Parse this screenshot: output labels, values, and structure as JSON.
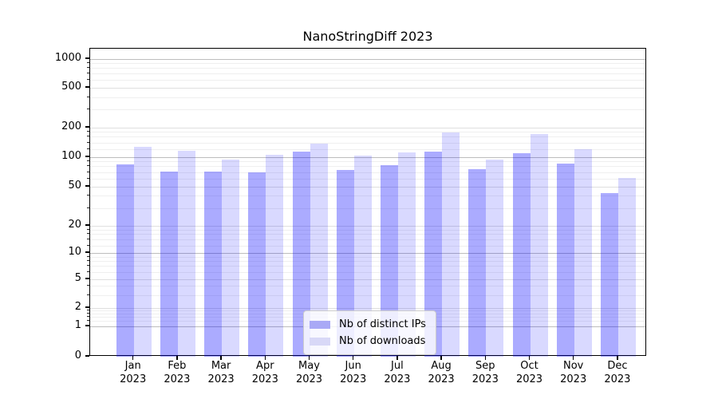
{
  "figure": {
    "title": "NanoStringDiff 2023"
  },
  "chart_data": {
    "type": "bar",
    "title": "NanoStringDiff 2023",
    "xlabel": "",
    "ylabel": "",
    "yscale": "log-like (ticks 0,1,2,5,10,20,50,100,200,500,1000; 0 at baseline)",
    "ylim": [
      0,
      1300
    ],
    "grid": true,
    "legend_position": "lower center",
    "yticks": [
      0,
      1,
      2,
      5,
      10,
      20,
      50,
      100,
      200,
      500,
      1000
    ],
    "categories": [
      {
        "month": "Jan",
        "year": "2023"
      },
      {
        "month": "Feb",
        "year": "2023"
      },
      {
        "month": "Mar",
        "year": "2023"
      },
      {
        "month": "Apr",
        "year": "2023"
      },
      {
        "month": "May",
        "year": "2023"
      },
      {
        "month": "Jun",
        "year": "2023"
      },
      {
        "month": "Jul",
        "year": "2023"
      },
      {
        "month": "Aug",
        "year": "2023"
      },
      {
        "month": "Sep",
        "year": "2023"
      },
      {
        "month": "Oct",
        "year": "2023"
      },
      {
        "month": "Nov",
        "year": "2023"
      },
      {
        "month": "Dec",
        "year": "2023"
      }
    ],
    "series": [
      {
        "name": "Nb of distinct IPs",
        "bar_color": "rgba(0,0,255,0.33)",
        "swatch_color": "#a9a9f6",
        "values": [
          85,
          72,
          72,
          70,
          113,
          74,
          83,
          115,
          75,
          110,
          86,
          43
        ]
      },
      {
        "name": "Nb of downloads",
        "bar_color": "rgba(0,0,255,0.15)",
        "swatch_color": "#d8d8f7",
        "values": [
          128,
          117,
          95,
          105,
          137,
          103,
          111,
          178,
          94,
          173,
          121,
          62
        ]
      }
    ]
  },
  "colors": {
    "axis": "#000000",
    "grid_major": "#bdbdbd",
    "grid_minor": "#efefef",
    "legend_border": "#cccccc"
  }
}
